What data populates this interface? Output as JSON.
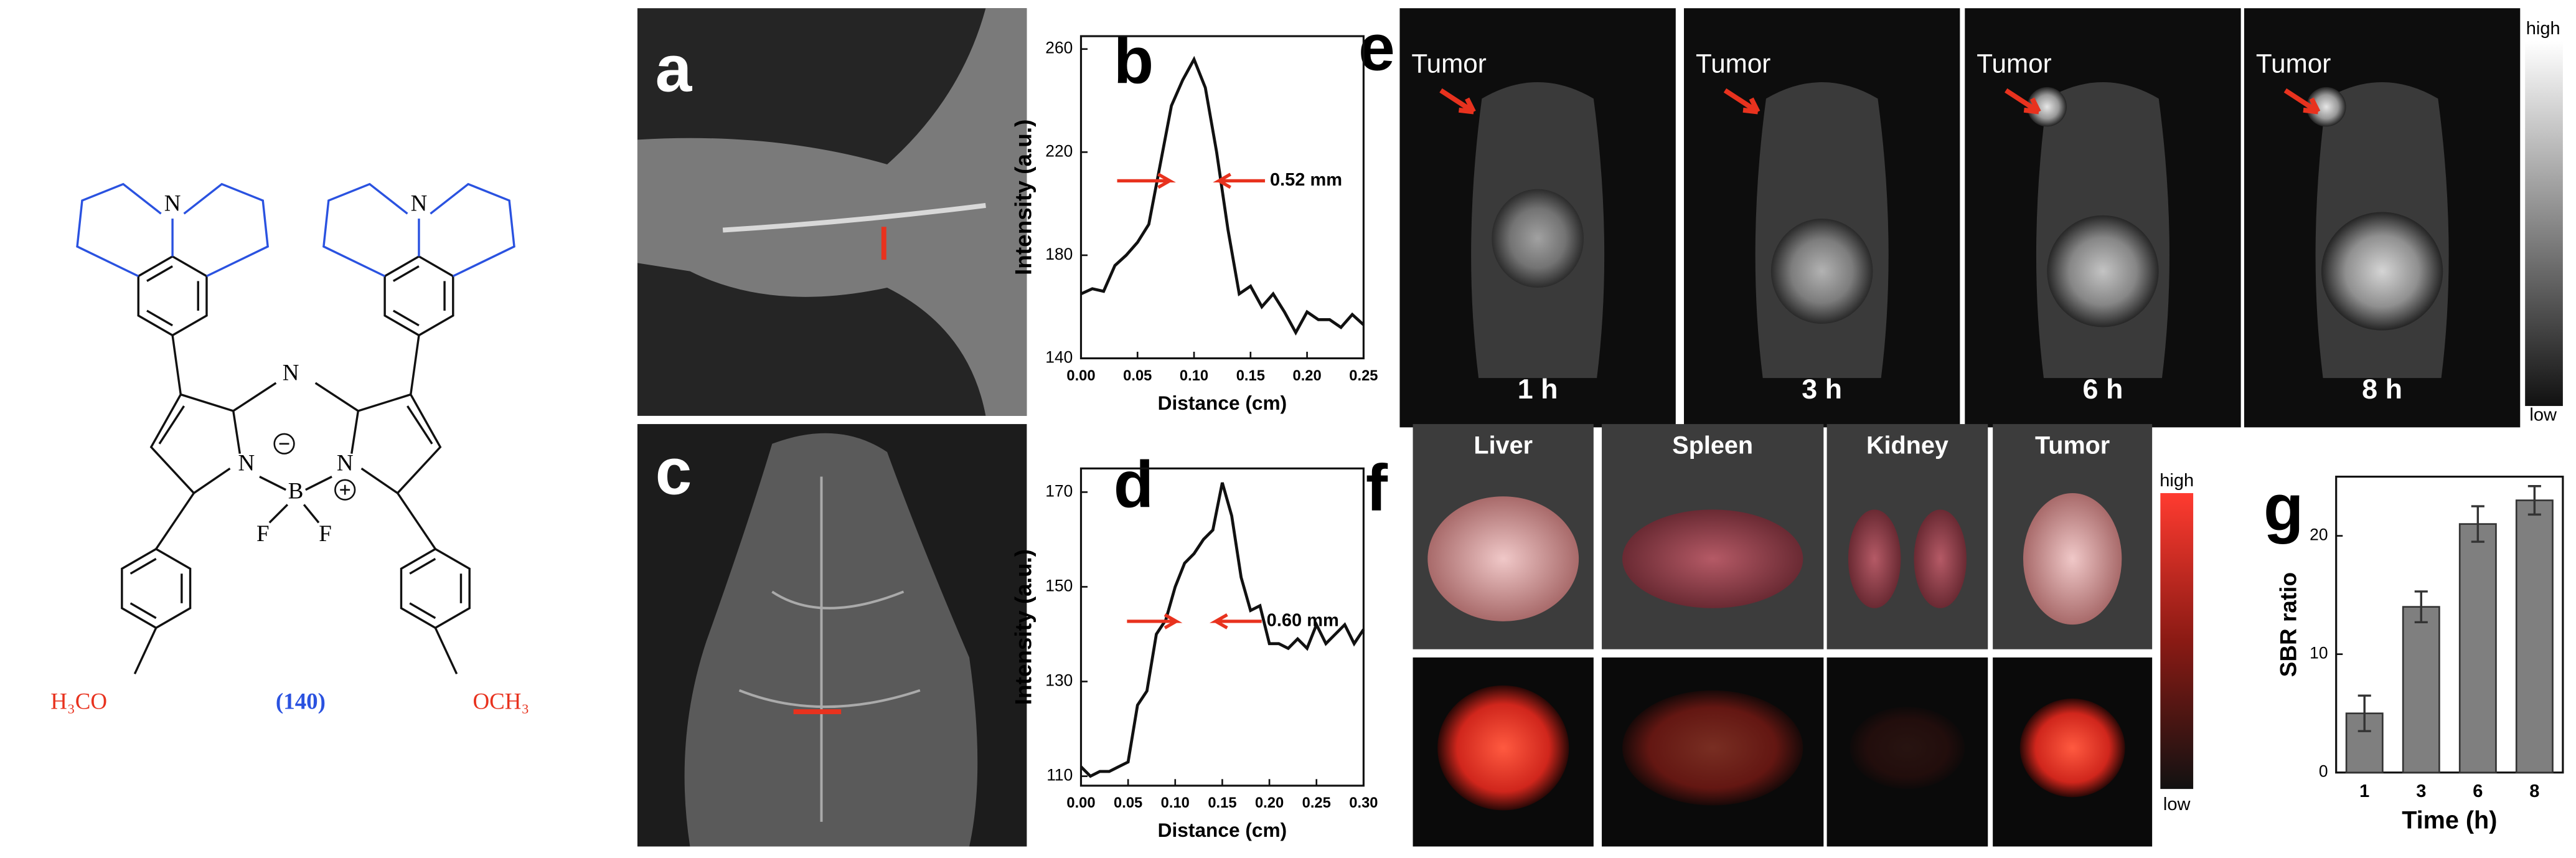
{
  "panel_labels": [
    "a",
    "b",
    "c",
    "d",
    "e",
    "f",
    "g"
  ],
  "molecule": {
    "atoms": [
      "N",
      "N",
      "N",
      "N",
      "N",
      "B",
      "F",
      "F"
    ],
    "substituents": [
      "H₃CO",
      "OCH₃"
    ],
    "compound": "(140)"
  },
  "panel_e": {
    "target_label": "Tumor",
    "times": [
      "1 h",
      "3 h",
      "6 h",
      "8 h"
    ],
    "scale_high": "high",
    "scale_low": "low"
  },
  "panel_f": {
    "organs": [
      "Liver",
      "Spleen",
      "Kidney",
      "Tumor"
    ],
    "scale_high": "high",
    "scale_low": "low"
  },
  "chart_data": [
    {
      "type": "line",
      "xlabel": "Distance (cm)",
      "ylabel": "Intensity (a.u.)",
      "annotation": "0.52 mm",
      "color": "#111111",
      "x": [
        0,
        0.01,
        0.02,
        0.03,
        0.04,
        0.05,
        0.06,
        0.07,
        0.08,
        0.09,
        0.1,
        0.11,
        0.12,
        0.13,
        0.14,
        0.15,
        0.16,
        0.17,
        0.18,
        0.19,
        0.2,
        0.21,
        0.22,
        0.23,
        0.24,
        0.25
      ],
      "values": [
        165,
        167,
        166,
        176,
        180,
        185,
        192,
        215,
        238,
        248,
        256,
        245,
        220,
        190,
        165,
        168,
        160,
        165,
        158,
        150,
        158,
        155,
        155,
        152,
        157,
        153
      ],
      "xlim": [
        0,
        0.25
      ],
      "ylim": [
        140,
        265
      ],
      "xticks": [
        {
          "value": 0,
          "label": "0.00"
        },
        {
          "value": 0.05,
          "label": "0.05"
        },
        {
          "value": 0.1,
          "label": "0.10"
        },
        {
          "value": 0.15,
          "label": "0.15"
        },
        {
          "value": 0.2,
          "label": "0.20"
        },
        {
          "value": 0.25,
          "label": "0.25"
        }
      ],
      "yticks": [
        140,
        180,
        220,
        260
      ]
    },
    {
      "type": "line",
      "xlabel": "Distance (cm)",
      "ylabel": "Intensity (a.u.)",
      "annotation": "0.60 mm",
      "color": "#111111",
      "x": [
        0,
        0.01,
        0.02,
        0.03,
        0.04,
        0.05,
        0.06,
        0.07,
        0.08,
        0.09,
        0.1,
        0.11,
        0.12,
        0.13,
        0.14,
        0.15,
        0.16,
        0.17,
        0.18,
        0.19,
        0.2,
        0.21,
        0.22,
        0.23,
        0.24,
        0.25,
        0.26,
        0.27,
        0.28,
        0.29,
        0.3
      ],
      "values": [
        112,
        110,
        111,
        111,
        112,
        113,
        125,
        128,
        140,
        143,
        150,
        155,
        157,
        160,
        162,
        172,
        165,
        152,
        145,
        146,
        138,
        138,
        137,
        139,
        137,
        142,
        138,
        140,
        142,
        138,
        141
      ],
      "xlim": [
        0,
        0.3
      ],
      "ylim": [
        108,
        175
      ],
      "xticks": [
        {
          "value": 0,
          "label": "0.00"
        },
        {
          "value": 0.05,
          "label": "0.05"
        },
        {
          "value": 0.1,
          "label": "0.10"
        },
        {
          "value": 0.15,
          "label": "0.15"
        },
        {
          "value": 0.2,
          "label": "0.20"
        },
        {
          "value": 0.25,
          "label": "0.25"
        },
        {
          "value": 0.3,
          "label": "0.30"
        }
      ],
      "yticks": [
        110,
        130,
        150,
        170
      ]
    },
    {
      "type": "bar",
      "xlabel": "Time (h)",
      "ylabel": "SBR ratio",
      "color": "#7f7f7f",
      "categories": [
        "1",
        "3",
        "6",
        "8"
      ],
      "values": [
        5,
        14,
        21,
        23
      ],
      "errors": [
        1.5,
        1.3,
        1.5,
        1.2
      ],
      "ylim": [
        0,
        25
      ],
      "yticks": [
        0,
        10,
        20
      ]
    }
  ]
}
